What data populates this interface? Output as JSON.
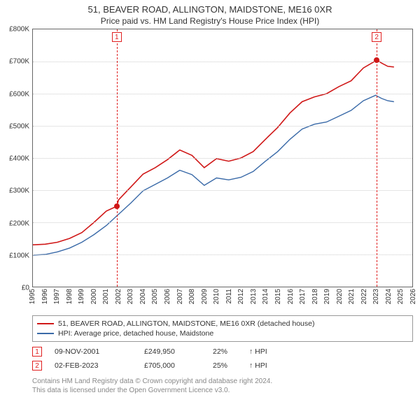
{
  "title": "51, BEAVER ROAD, ALLINGTON, MAIDSTONE, ME16 0XR",
  "subtitle": "Price paid vs. HM Land Registry's House Price Index (HPI)",
  "chart": {
    "type": "line",
    "background_color": "#ffffff",
    "grid_color": "#cccccc",
    "border_color": "#666666",
    "ylim": [
      0,
      800000
    ],
    "ytick_step": 100000,
    "yticks": [
      "£0",
      "£100K",
      "£200K",
      "£300K",
      "£400K",
      "£500K",
      "£600K",
      "£700K",
      "£800K"
    ],
    "xlim": [
      1995,
      2026
    ],
    "xticks": [
      1995,
      1996,
      1997,
      1998,
      1999,
      2000,
      2001,
      2002,
      2003,
      2004,
      2005,
      2006,
      2007,
      2008,
      2009,
      2010,
      2011,
      2012,
      2013,
      2014,
      2015,
      2016,
      2017,
      2018,
      2019,
      2020,
      2021,
      2022,
      2023,
      2024,
      2025,
      2026
    ],
    "series": {
      "property": {
        "color": "#d01818",
        "stroke_width": 1.6,
        "points": [
          [
            1995,
            130000
          ],
          [
            1996,
            132000
          ],
          [
            1997,
            138000
          ],
          [
            1998,
            150000
          ],
          [
            1999,
            168000
          ],
          [
            2000,
            200000
          ],
          [
            2001,
            235000
          ],
          [
            2001.85,
            249950
          ],
          [
            2002,
            270000
          ],
          [
            2003,
            310000
          ],
          [
            2004,
            350000
          ],
          [
            2005,
            370000
          ],
          [
            2006,
            395000
          ],
          [
            2007,
            425000
          ],
          [
            2008,
            408000
          ],
          [
            2009,
            370000
          ],
          [
            2010,
            398000
          ],
          [
            2011,
            390000
          ],
          [
            2012,
            400000
          ],
          [
            2013,
            420000
          ],
          [
            2014,
            458000
          ],
          [
            2015,
            495000
          ],
          [
            2016,
            540000
          ],
          [
            2017,
            575000
          ],
          [
            2018,
            590000
          ],
          [
            2019,
            600000
          ],
          [
            2020,
            622000
          ],
          [
            2021,
            640000
          ],
          [
            2022,
            680000
          ],
          [
            2023,
            702000
          ],
          [
            2023.09,
            705000
          ],
          [
            2023.5,
            695000
          ],
          [
            2024,
            685000
          ],
          [
            2024.5,
            683000
          ]
        ]
      },
      "hpi": {
        "color": "#3a6aa8",
        "stroke_width": 1.4,
        "points": [
          [
            1995,
            98000
          ],
          [
            1996,
            100000
          ],
          [
            1997,
            108000
          ],
          [
            1998,
            120000
          ],
          [
            1999,
            138000
          ],
          [
            2000,
            162000
          ],
          [
            2001,
            190000
          ],
          [
            2002,
            225000
          ],
          [
            2003,
            260000
          ],
          [
            2004,
            298000
          ],
          [
            2005,
            318000
          ],
          [
            2006,
            338000
          ],
          [
            2007,
            362000
          ],
          [
            2008,
            348000
          ],
          [
            2009,
            315000
          ],
          [
            2010,
            338000
          ],
          [
            2011,
            332000
          ],
          [
            2012,
            340000
          ],
          [
            2013,
            358000
          ],
          [
            2014,
            390000
          ],
          [
            2015,
            420000
          ],
          [
            2016,
            458000
          ],
          [
            2017,
            490000
          ],
          [
            2018,
            505000
          ],
          [
            2019,
            512000
          ],
          [
            2020,
            530000
          ],
          [
            2021,
            548000
          ],
          [
            2022,
            578000
          ],
          [
            2023,
            595000
          ],
          [
            2023.5,
            585000
          ],
          [
            2024,
            578000
          ],
          [
            2024.5,
            575000
          ]
        ]
      }
    },
    "markers": [
      {
        "n": "1",
        "x": 2001.85,
        "y": 249950,
        "dot_color": "#d01818"
      },
      {
        "n": "2",
        "x": 2023.09,
        "y": 705000,
        "dot_color": "#d01818"
      }
    ],
    "marker_line_color": "#e02020"
  },
  "legend": {
    "items": [
      {
        "color": "#d01818",
        "label": "51, BEAVER ROAD, ALLINGTON, MAIDSTONE, ME16 0XR (detached house)"
      },
      {
        "color": "#3a6aa8",
        "label": "HPI: Average price, detached house, Maidstone"
      }
    ]
  },
  "transactions": [
    {
      "n": "1",
      "date": "09-NOV-2001",
      "price": "£249,950",
      "pct": "22%",
      "arrow": "↑",
      "rel": "HPI"
    },
    {
      "n": "2",
      "date": "02-FEB-2023",
      "price": "£705,000",
      "pct": "25%",
      "arrow": "↑",
      "rel": "HPI"
    }
  ],
  "footnote": {
    "line1": "Contains HM Land Registry data © Crown copyright and database right 2024.",
    "line2": "This data is licensed under the Open Government Licence v3.0."
  },
  "colors": {
    "text": "#333333",
    "footnote": "#888888",
    "marker_border": "#e02020"
  }
}
